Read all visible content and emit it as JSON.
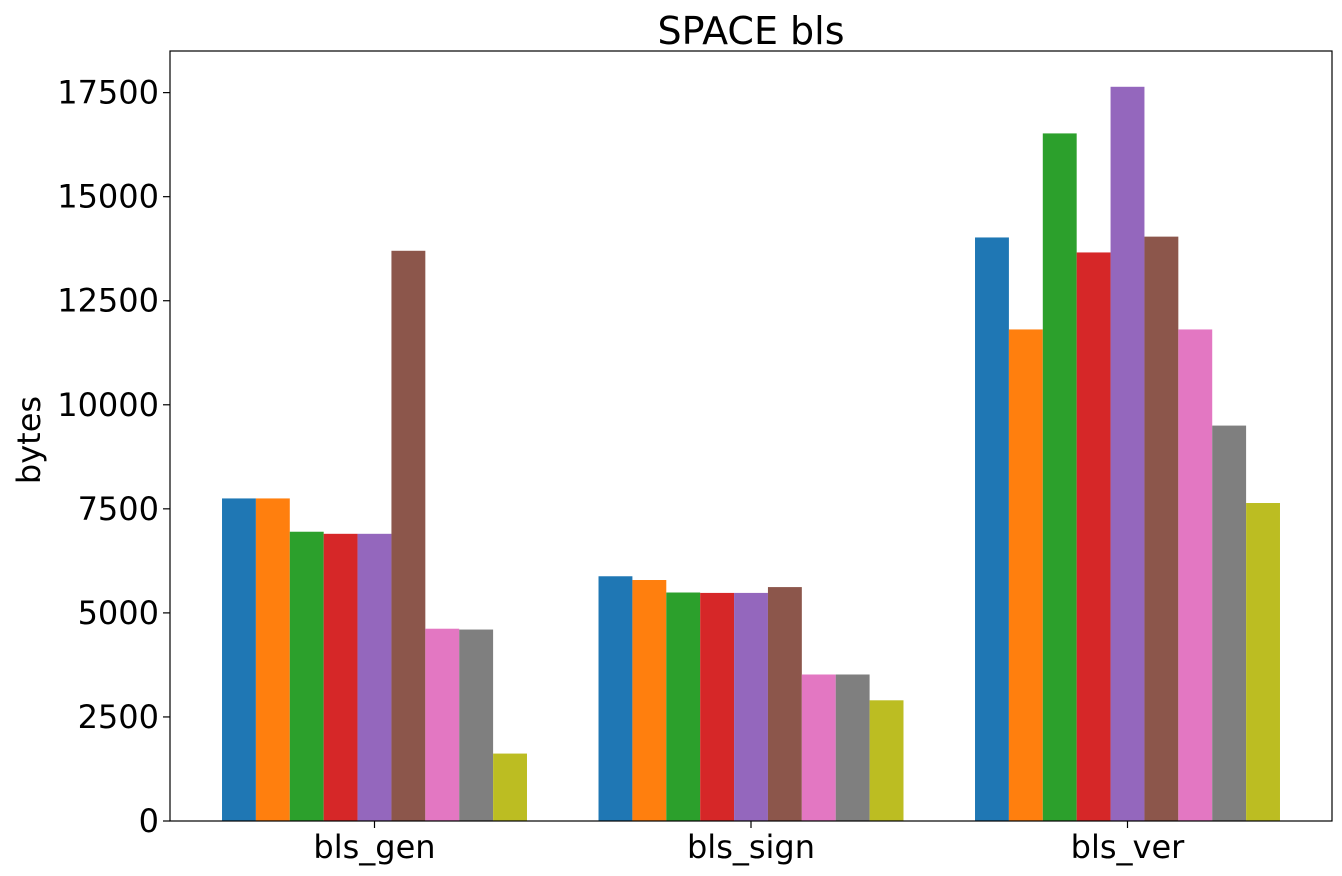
{
  "chart_data": {
    "type": "bar",
    "title": "SPACE bls",
    "xlabel": "",
    "ylabel": "bytes",
    "categories": [
      "bls_gen",
      "bls_sign",
      "bls_ver"
    ],
    "ylim": [
      0,
      18500
    ],
    "yticks": [
      0,
      2500,
      5000,
      7500,
      10000,
      12500,
      15000,
      17500
    ],
    "ytick_labels": [
      "0",
      "2500",
      "5000",
      "7500",
      "10000",
      "12500",
      "15000",
      "17500"
    ],
    "grid": false,
    "legend": "none",
    "series": [
      {
        "color": "#1f77b4",
        "values": [
          7750,
          5880,
          14020
        ]
      },
      {
        "color": "#ff7f0e",
        "values": [
          7750,
          5790,
          11810
        ]
      },
      {
        "color": "#2ca02c",
        "values": [
          6950,
          5490,
          16520
        ]
      },
      {
        "color": "#d62728",
        "values": [
          6900,
          5480,
          13660
        ]
      },
      {
        "color": "#9467bd",
        "values": [
          6900,
          5480,
          17640
        ]
      },
      {
        "color": "#8c564b",
        "values": [
          13700,
          5620,
          14040
        ]
      },
      {
        "color": "#e377c2",
        "values": [
          4620,
          3520,
          11810
        ]
      },
      {
        "color": "#7f7f7f",
        "values": [
          4600,
          3520,
          9500
        ]
      },
      {
        "color": "#bcbd22",
        "values": [
          1620,
          2900,
          7640
        ]
      }
    ]
  }
}
